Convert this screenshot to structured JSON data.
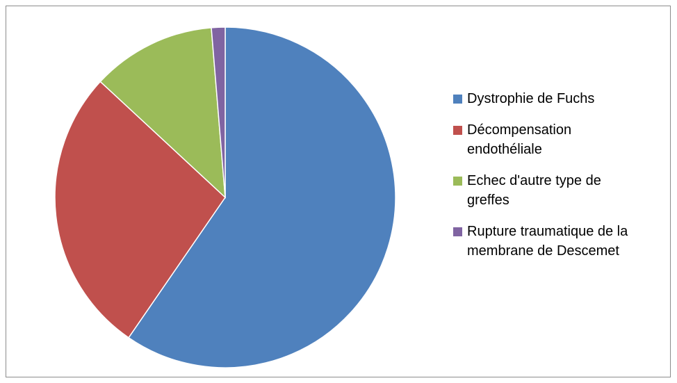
{
  "chart_data": {
    "type": "pie",
    "title": "",
    "legend_position": "right",
    "slices": [
      {
        "label": "Dystrophie de Fuchs",
        "value": 59.6,
        "color": "#4F81BD"
      },
      {
        "label": "Décompensation endothéliale",
        "value": 27.3,
        "color": "#C0504D"
      },
      {
        "label": "Echec d'autre type de greffes",
        "value": 11.8,
        "color": "#9BBB59"
      },
      {
        "label": "Rupture traumatique de la membrane de Descemet",
        "value": 1.3,
        "color": "#8064A2"
      }
    ]
  }
}
